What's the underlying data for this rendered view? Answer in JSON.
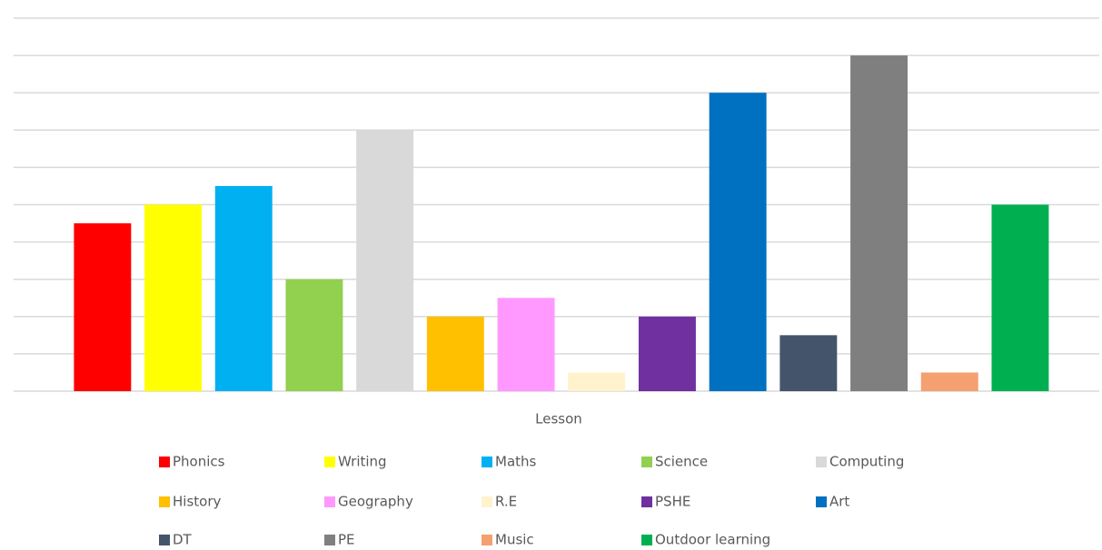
{
  "chart_data": {
    "type": "bar",
    "x_label": "Lesson",
    "categories": [
      "Phonics",
      "Writing",
      "Maths",
      "Science",
      "Computing",
      "History",
      "Geography",
      "R.E",
      "PSHE",
      "Art",
      "DT",
      "PE",
      "Music",
      "Outdoor learning"
    ],
    "values": [
      4.5,
      5,
      5.5,
      3,
      7,
      2,
      2.5,
      0.5,
      2,
      8,
      1.5,
      9,
      0.5,
      5
    ],
    "colors": [
      "#ff0000",
      "#ffff00",
      "#00b0f0",
      "#92d050",
      "#d9d9d9",
      "#ffc000",
      "#ff99ff",
      "#fff2cc",
      "#7030a0",
      "#0070c0",
      "#44546a",
      "#7f7f7f",
      "#f4a070",
      "#00b050"
    ],
    "ylim": [
      0,
      10
    ],
    "yticks": [
      0,
      1,
      2,
      3,
      4,
      5,
      6,
      7,
      8,
      9,
      10
    ],
    "grid": true,
    "legend": "bottom"
  }
}
